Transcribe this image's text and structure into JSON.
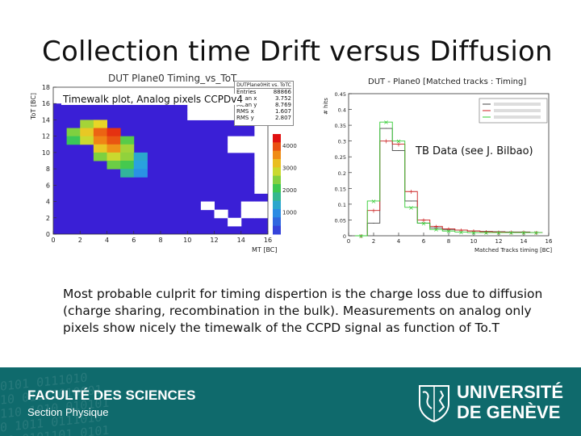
{
  "slide": {
    "title": "Collection time Drift versus Diffusion",
    "body": "Most probable culprit for timing dispertion is the charge loss due to diffusion (charge sharing, recombination in the bulk). Measurements on analog only pixels show nicely the timewalk of the CCPD signal as function of To.T"
  },
  "left_plot": {
    "title": "DUT Plane0 Timing_vs_ToT",
    "annotation": "Timewalk plot, Analog pixels CCPDv4",
    "xlabel": "MT [BC]",
    "ylabel": "ToT [BC]",
    "stats": {
      "header": "DUTPlane0Hit vs. ToTC",
      "rows": [
        {
          "k": "Entries",
          "v": "88866"
        },
        {
          "k": "Mean x",
          "v": "3.752"
        },
        {
          "k": "Mean y",
          "v": "8.769"
        },
        {
          "k": "RMS x",
          "v": "1.607"
        },
        {
          "k": "RMS y",
          "v": "2.807"
        }
      ]
    }
  },
  "right_plot": {
    "title": "DUT - Plane0 [Matched tracks : Timing]",
    "annotation": "TB Data (see J. Bilbao)",
    "xlabel": "Matched Tracks timing [BC]",
    "ylabel": "# hits"
  },
  "footer": {
    "faculty": "FACULTÉ DES SCIENCES",
    "section": "Section Physique",
    "university_line1": "UNIVERSITÉ",
    "university_line2": "DE GENÈVE",
    "binary": "0101 0111010\n10 01011010001\n110 1010 010101\n0 1011 0111010\n10 0101101 0101"
  },
  "chart_data": [
    {
      "type": "heatmap",
      "title": "DUT Plane0 Timing_vs_ToT",
      "xlabel": "MT [BC]",
      "ylabel": "ToT [BC]",
      "xlim": [
        0,
        16
      ],
      "ylim": [
        0,
        18
      ],
      "x_ticks": [
        0,
        2,
        4,
        6,
        8,
        10,
        12,
        14,
        16
      ],
      "y_ticks": [
        0,
        2,
        4,
        6,
        8,
        10,
        12,
        14,
        16,
        18
      ],
      "z_ticks": [
        1000,
        2000,
        3000,
        4000
      ],
      "colors": {
        "low": "#3a1fd6",
        "high": "#e01010",
        "empty": "#ffffff"
      },
      "cells": [
        {
          "x": 1,
          "y": 12,
          "z": 2600
        },
        {
          "x": 1,
          "y": 11,
          "z": 2200
        },
        {
          "x": 2,
          "y": 13,
          "z": 2800
        },
        {
          "x": 2,
          "y": 12,
          "z": 3300
        },
        {
          "x": 2,
          "y": 11,
          "z": 3000
        },
        {
          "x": 3,
          "y": 13,
          "z": 3200
        },
        {
          "x": 3,
          "y": 12,
          "z": 4000
        },
        {
          "x": 3,
          "y": 11,
          "z": 3800
        },
        {
          "x": 3,
          "y": 10,
          "z": 3300
        },
        {
          "x": 3,
          "y": 9,
          "z": 2600
        },
        {
          "x": 4,
          "y": 12,
          "z": 4300
        },
        {
          "x": 4,
          "y": 11,
          "z": 4100
        },
        {
          "x": 4,
          "y": 10,
          "z": 3700
        },
        {
          "x": 4,
          "y": 9,
          "z": 3000
        },
        {
          "x": 4,
          "y": 8,
          "z": 2500
        },
        {
          "x": 5,
          "y": 11,
          "z": 2400
        },
        {
          "x": 5,
          "y": 10,
          "z": 2800
        },
        {
          "x": 5,
          "y": 9,
          "z": 2700
        },
        {
          "x": 5,
          "y": 8,
          "z": 2300
        },
        {
          "x": 5,
          "y": 7,
          "z": 1800
        },
        {
          "x": 6,
          "y": 9,
          "z": 1500
        },
        {
          "x": 6,
          "y": 8,
          "z": 1400
        },
        {
          "x": 6,
          "y": 7,
          "z": 1200
        }
      ],
      "empty_cells": [
        {
          "x": 10,
          "y": 15
        },
        {
          "x": 10,
          "y": 14
        },
        {
          "x": 11,
          "y": 15
        },
        {
          "x": 11,
          "y": 14
        },
        {
          "x": 12,
          "y": 15
        },
        {
          "x": 12,
          "y": 14
        },
        {
          "x": 13,
          "y": 15
        },
        {
          "x": 13,
          "y": 14
        },
        {
          "x": 14,
          "y": 15
        },
        {
          "x": 14,
          "y": 14
        },
        {
          "x": 15,
          "y": 15
        },
        {
          "x": 15,
          "y": 14
        },
        {
          "x": 15,
          "y": 13
        },
        {
          "x": 15,
          "y": 12
        },
        {
          "x": 13,
          "y": 11
        },
        {
          "x": 13,
          "y": 10
        },
        {
          "x": 14,
          "y": 11
        },
        {
          "x": 14,
          "y": 10
        },
        {
          "x": 15,
          "y": 11
        },
        {
          "x": 15,
          "y": 10
        },
        {
          "x": 15,
          "y": 9
        },
        {
          "x": 15,
          "y": 8
        },
        {
          "x": 15,
          "y": 7
        },
        {
          "x": 15,
          "y": 6
        },
        {
          "x": 15,
          "y": 5
        },
        {
          "x": 14,
          "y": 3
        },
        {
          "x": 15,
          "y": 3
        },
        {
          "x": 14,
          "y": 2
        },
        {
          "x": 15,
          "y": 2
        },
        {
          "x": 11,
          "y": 3
        },
        {
          "x": 12,
          "y": 2
        },
        {
          "x": 13,
          "y": 1
        }
      ]
    },
    {
      "type": "line",
      "title": "DUT - Plane0 [Matched tracks : Timing]",
      "xlabel": "Matched Tracks timing [BC]",
      "ylabel": "# hits",
      "xlim": [
        0,
        16
      ],
      "ylim": [
        0,
        0.45
      ],
      "x_ticks": [
        0,
        2,
        4,
        6,
        8,
        10,
        12,
        14,
        16
      ],
      "y_ticks": [
        0,
        0.05,
        0.1,
        0.15,
        0.2,
        0.25,
        0.3,
        0.35,
        0.4,
        0.45
      ],
      "x": [
        1,
        2,
        3,
        4,
        5,
        6,
        7,
        8,
        9,
        10,
        11,
        12,
        13,
        14,
        15
      ],
      "series": [
        {
          "color": "#444444",
          "values": [
            0.0,
            0.04,
            0.34,
            0.27,
            0.11,
            0.04,
            0.025,
            0.02,
            0.018,
            0.015,
            0.014,
            0.013,
            0.012,
            0.012,
            0.01
          ]
        },
        {
          "color": "#cc2222",
          "values": [
            0.0,
            0.08,
            0.3,
            0.29,
            0.14,
            0.05,
            0.03,
            0.022,
            0.018,
            0.015,
            0.013,
            0.012,
            0.011,
            0.011,
            0.01
          ]
        },
        {
          "color": "#33cc33",
          "values": [
            0.0,
            0.11,
            0.36,
            0.3,
            0.09,
            0.04,
            0.02,
            0.015,
            0.012,
            0.01,
            0.01,
            0.01,
            0.01,
            0.01,
            0.01
          ]
        }
      ]
    }
  ]
}
